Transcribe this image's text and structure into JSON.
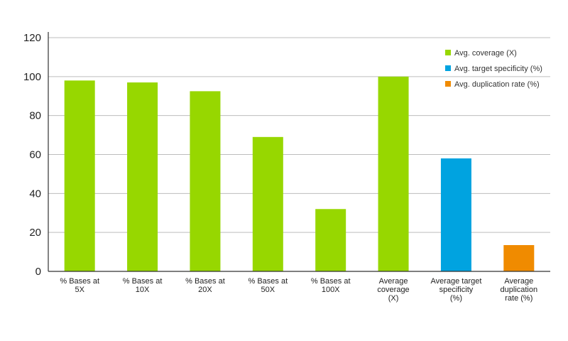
{
  "chart_data": {
    "type": "bar",
    "title": "",
    "xlabel": "",
    "ylabel": "",
    "ylim": [
      0,
      120
    ],
    "yticks": [
      0,
      20,
      40,
      60,
      80,
      100,
      120
    ],
    "grid": true,
    "legend_position": "top-right",
    "categories": [
      [
        "% Bases at",
        "5X"
      ],
      [
        "% Bases at",
        "10X"
      ],
      [
        "% Bases at",
        "20X"
      ],
      [
        "% Bases at",
        "50X"
      ],
      [
        "% Bases at",
        "100X"
      ],
      [
        "Average",
        "coverage",
        "(X)"
      ],
      [
        "Average target",
        "specificity",
        "(%)"
      ],
      [
        "Average",
        "duplication",
        "rate (%)"
      ]
    ],
    "values": [
      98,
      97,
      92.5,
      69,
      32,
      100,
      58,
      13.5
    ],
    "bar_series": [
      0,
      0,
      0,
      0,
      0,
      0,
      1,
      2
    ],
    "series": [
      {
        "name": "Avg. coverage (X)",
        "color": "#97d700"
      },
      {
        "name": "Avg. target specificity (%)",
        "color": "#00a3e0"
      },
      {
        "name": "Avg. duplication rate (%)",
        "color": "#f08b00"
      }
    ],
    "axis_color": "#333333",
    "grid_color": "#bdbdbd"
  }
}
